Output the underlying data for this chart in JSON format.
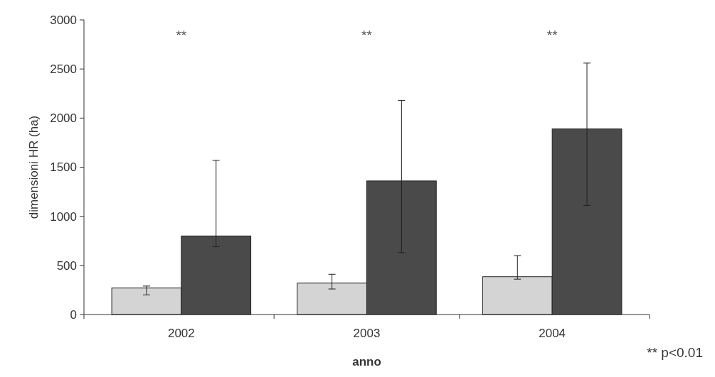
{
  "chart_data": {
    "type": "bar",
    "xlabel": "anno",
    "ylabel": "dimensioni HR (ha)",
    "categories": [
      "2002",
      "2003",
      "2004"
    ],
    "series": [
      {
        "color": "#d4d4d4",
        "values": [
          270,
          320,
          385
        ],
        "errors": [
          [
            200,
            290
          ],
          [
            260,
            410
          ],
          [
            360,
            600
          ]
        ]
      },
      {
        "color": "#4a4a4a",
        "values": [
          800,
          1360,
          1890
        ],
        "errors": [
          [
            690,
            1570
          ],
          [
            630,
            2180
          ],
          [
            1110,
            2560
          ]
        ]
      }
    ],
    "ylim": [
      0,
      3000
    ],
    "yticks": [
      0,
      500,
      1000,
      1500,
      2000,
      2500,
      3000
    ],
    "grid": false,
    "annotations": [
      "**",
      "**",
      "**",
      "** p<0.01"
    ]
  }
}
